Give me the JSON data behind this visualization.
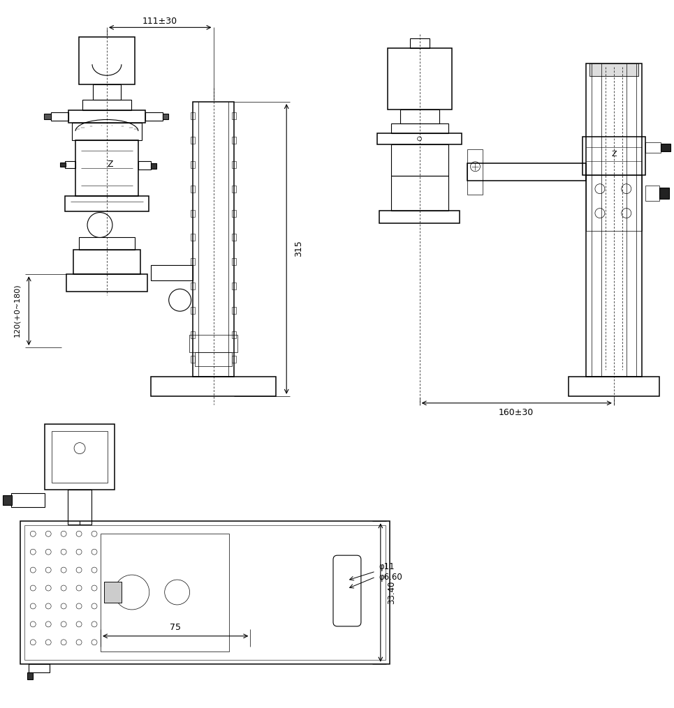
{
  "bg_color": "#ffffff",
  "line_color": "#000000",
  "annotations": {
    "top_width": "111±30",
    "right_height": "315",
    "left_height": "120(+0~180)",
    "right_width": "160±30",
    "dim_75": "75",
    "dim_phi11": "φ11",
    "dim_phi660": "φ6.60",
    "dim_3340": "33.40"
  },
  "figsize": [
    9.65,
    10.15
  ],
  "dpi": 100
}
